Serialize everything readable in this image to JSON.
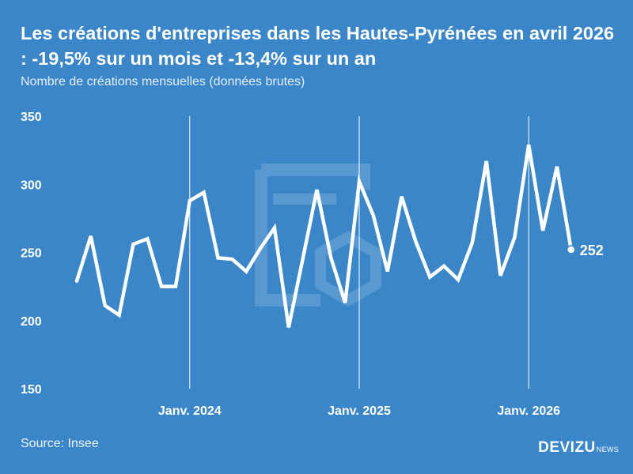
{
  "header": {
    "title": "Les créations d'entreprises dans les Hautes-Pyrénées en avril 2026 : -19,5% sur un mois et -13,4% sur un an",
    "subtitle": "Nombre de créations mensuelles (données brutes)"
  },
  "footer": {
    "source": "Source: Insee",
    "brand_main": "DEVIZU",
    "brand_sub": "NEWS"
  },
  "colors": {
    "background": "#3a86c8",
    "line": "#ffffff",
    "watermark": "#6fa7d8"
  },
  "watermark_icon": "devizu-logo-watermark",
  "chart_data": {
    "type": "line",
    "title": "Les créations d'entreprises dans les Hautes-Pyrénées en avril 2026 : -19,5% sur un mois et -13,4% sur un an",
    "subtitle": "Nombre de créations mensuelles (données brutes)",
    "x": [
      "2023-05",
      "2023-06",
      "2023-07",
      "2023-08",
      "2023-09",
      "2023-10",
      "2023-11",
      "2023-12",
      "2024-01",
      "2024-02",
      "2024-03",
      "2024-04",
      "2024-05",
      "2024-06",
      "2024-07",
      "2024-08",
      "2024-09",
      "2024-10",
      "2024-11",
      "2024-12",
      "2025-01",
      "2025-02",
      "2025-03",
      "2025-04",
      "2025-05",
      "2025-06",
      "2025-07",
      "2025-08",
      "2025-09",
      "2025-10",
      "2025-11",
      "2025-12",
      "2026-01",
      "2026-02",
      "2026-03",
      "2026-04"
    ],
    "series": [
      {
        "values": [
          229,
          262,
          211,
          204,
          256,
          260,
          225,
          225,
          288,
          294,
          246,
          245,
          236,
          253,
          268,
          195,
          245,
          296,
          246,
          213,
          302,
          277,
          236,
          291,
          258,
          232,
          240,
          230,
          257,
          317,
          233,
          261,
          329,
          266,
          313,
          252
        ]
      }
    ],
    "ylim": [
      150,
      350
    ],
    "yticks": [
      150,
      200,
      250,
      300,
      350
    ],
    "xticks": [
      {
        "date": "2024-01",
        "label": "Janv. 2024"
      },
      {
        "date": "2025-01",
        "label": "Janv. 2025"
      },
      {
        "date": "2026-01",
        "label": "Janv. 2026"
      }
    ],
    "last_value_label": "252",
    "grid": "vertical lines at January of each year"
  }
}
